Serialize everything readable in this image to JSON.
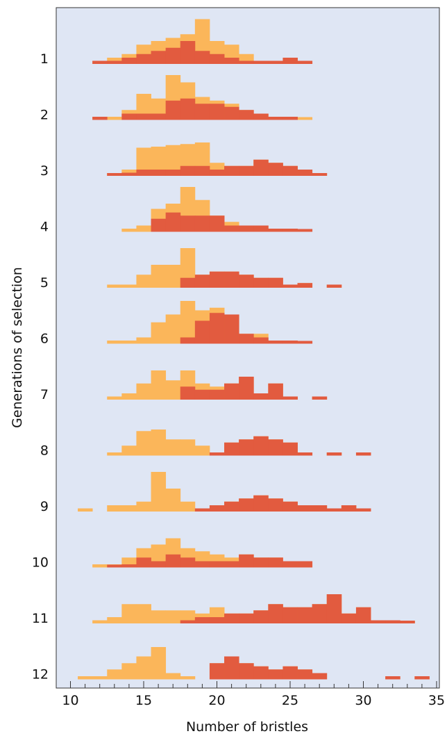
{
  "chart_data": {
    "type": "histogram",
    "xlabel": "Number of bristles",
    "ylabel": "Generations of selection",
    "xlim": [
      10,
      35
    ],
    "x_ticks": [
      "10",
      "15",
      "20",
      "25",
      "30",
      "35"
    ],
    "generation_labels": [
      "1",
      "2",
      "3",
      "4",
      "5",
      "6",
      "7",
      "8",
      "9",
      "10",
      "11",
      "12"
    ],
    "bin_start": 10.5,
    "bin_width": 1,
    "colors": {
      "background": "#dfe6f4",
      "orange": "#fbb65a",
      "red": "#e25b3f",
      "axis": "#333333"
    },
    "generations": [
      {
        "label": "1",
        "orange": [
          0,
          0.06,
          0.12,
          0.19,
          0.37,
          0.44,
          0.5,
          0.57,
          0.86,
          0.44,
          0.37,
          0.19,
          0.06,
          0.06,
          0.12,
          0.06,
          0,
          0,
          0,
          0,
          0,
          0,
          0,
          0,
          0
        ],
        "red": [
          0,
          0.06,
          0.06,
          0.12,
          0.19,
          0.25,
          0.31,
          0.44,
          0.25,
          0.19,
          0.12,
          0.06,
          0.06,
          0.06,
          0.12,
          0.06,
          0,
          0,
          0,
          0,
          0,
          0,
          0,
          0,
          0
        ]
      },
      {
        "label": "2",
        "orange": [
          0,
          0.06,
          0.06,
          0.19,
          0.5,
          0.41,
          0.86,
          0.72,
          0.44,
          0.37,
          0.31,
          0.19,
          0.12,
          0.06,
          0.06,
          0.03,
          0,
          0,
          0,
          0,
          0,
          0,
          0,
          0,
          0
        ],
        "red": [
          0,
          0.06,
          0,
          0.12,
          0.12,
          0.12,
          0.37,
          0.41,
          0.31,
          0.31,
          0.25,
          0.19,
          0.12,
          0.06,
          0.06,
          0,
          0,
          0,
          0,
          0,
          0,
          0,
          0,
          0,
          0
        ]
      },
      {
        "label": "3",
        "orange": [
          0,
          0,
          0.03,
          0.12,
          0.54,
          0.56,
          0.59,
          0.61,
          0.64,
          0.25,
          0.19,
          0.19,
          0.31,
          0.25,
          0.19,
          0.12,
          0.03,
          0,
          0,
          0,
          0,
          0,
          0,
          0,
          0
        ],
        "red": [
          0,
          0,
          0.03,
          0.06,
          0.12,
          0.12,
          0.12,
          0.19,
          0.19,
          0.12,
          0.19,
          0.19,
          0.31,
          0.25,
          0.19,
          0.12,
          0.03,
          0,
          0,
          0,
          0,
          0,
          0,
          0,
          0
        ]
      },
      {
        "label": "4",
        "orange": [
          0,
          0,
          0,
          0.06,
          0.12,
          0.44,
          0.54,
          0.86,
          0.61,
          0.31,
          0.19,
          0.12,
          0.12,
          0.06,
          0.06,
          0.03,
          0,
          0,
          0,
          0,
          0,
          0,
          0,
          0,
          0
        ],
        "red": [
          0,
          0,
          0,
          0,
          0,
          0.25,
          0.37,
          0.31,
          0.31,
          0.31,
          0.12,
          0.12,
          0.12,
          0.06,
          0.06,
          0.03,
          0,
          0,
          0,
          0,
          0,
          0,
          0,
          0,
          0
        ]
      },
      {
        "label": "5",
        "orange": [
          0,
          0,
          0.06,
          0.06,
          0.25,
          0.44,
          0.44,
          0.76,
          0.25,
          0.31,
          0.31,
          0.25,
          0.19,
          0.19,
          0.06,
          0.09,
          0,
          0.06,
          0,
          0,
          0,
          0,
          0,
          0,
          0
        ],
        "red": [
          0,
          0,
          0,
          0,
          0,
          0,
          0,
          0.19,
          0.25,
          0.31,
          0.31,
          0.25,
          0.19,
          0.19,
          0.06,
          0.09,
          0,
          0.06,
          0,
          0,
          0,
          0,
          0,
          0,
          0
        ]
      },
      {
        "label": "6",
        "orange": [
          0,
          0,
          0.06,
          0.06,
          0.12,
          0.41,
          0.56,
          0.82,
          0.64,
          0.69,
          0.56,
          0.19,
          0.19,
          0.06,
          0.06,
          0.03,
          0,
          0,
          0,
          0,
          0,
          0,
          0,
          0,
          0
        ],
        "red": [
          0,
          0,
          0,
          0,
          0,
          0,
          0,
          0.12,
          0.44,
          0.59,
          0.56,
          0.19,
          0.12,
          0.06,
          0.06,
          0.03,
          0,
          0,
          0,
          0,
          0,
          0,
          0,
          0,
          0
        ]
      },
      {
        "label": "7",
        "orange": [
          0,
          0,
          0.06,
          0.12,
          0.31,
          0.56,
          0.37,
          0.56,
          0.31,
          0.25,
          0.31,
          0.44,
          0.12,
          0.31,
          0.06,
          0,
          0.06,
          0,
          0,
          0,
          0,
          0,
          0,
          0,
          0
        ],
        "red": [
          0,
          0,
          0,
          0,
          0,
          0,
          0,
          0.25,
          0.19,
          0.19,
          0.31,
          0.44,
          0.12,
          0.31,
          0.06,
          0,
          0.06,
          0,
          0,
          0,
          0,
          0,
          0,
          0,
          0
        ]
      },
      {
        "label": "8",
        "orange": [
          0,
          0,
          0.06,
          0.19,
          0.47,
          0.5,
          0.31,
          0.31,
          0.19,
          0.06,
          0.25,
          0.31,
          0.37,
          0.31,
          0.25,
          0.06,
          0,
          0.06,
          0,
          0.06,
          0,
          0,
          0,
          0,
          0
        ],
        "red": [
          0,
          0,
          0,
          0,
          0,
          0,
          0,
          0,
          0,
          0.06,
          0.25,
          0.31,
          0.37,
          0.31,
          0.25,
          0.06,
          0,
          0.06,
          0,
          0.06,
          0,
          0,
          0,
          0,
          0
        ]
      },
      {
        "label": "9",
        "orange": [
          0.06,
          0,
          0.12,
          0.12,
          0.19,
          0.76,
          0.44,
          0.19,
          0.06,
          0.12,
          0.19,
          0.25,
          0.31,
          0.25,
          0.19,
          0.12,
          0.12,
          0.06,
          0.12,
          0.06,
          0,
          0,
          0,
          0,
          0
        ],
        "red": [
          0,
          0,
          0,
          0,
          0,
          0,
          0,
          0,
          0.06,
          0.12,
          0.19,
          0.25,
          0.31,
          0.25,
          0.19,
          0.12,
          0.12,
          0.06,
          0.12,
          0.06,
          0,
          0,
          0,
          0,
          0
        ]
      },
      {
        "label": "10",
        "orange": [
          0,
          0.06,
          0.06,
          0.19,
          0.37,
          0.44,
          0.56,
          0.37,
          0.31,
          0.25,
          0.19,
          0.25,
          0.19,
          0.19,
          0.12,
          0.12,
          0,
          0,
          0,
          0,
          0,
          0,
          0,
          0,
          0
        ],
        "red": [
          0,
          0,
          0.03,
          0.06,
          0.19,
          0.12,
          0.25,
          0.19,
          0.12,
          0.12,
          0.12,
          0.25,
          0.19,
          0.19,
          0.12,
          0.12,
          0,
          0,
          0,
          0,
          0,
          0,
          0,
          0,
          0
        ]
      },
      {
        "label": "11",
        "orange": [
          0,
          0.06,
          0.12,
          0.37,
          0.37,
          0.25,
          0.25,
          0.25,
          0.19,
          0.31,
          0.19,
          0.19,
          0.25,
          0.37,
          0.31,
          0.31,
          0.37,
          0.56,
          0.19,
          0.31,
          0.06,
          0.06,
          0.03,
          0,
          0
        ],
        "red": [
          0,
          0,
          0,
          0,
          0,
          0,
          0,
          0.06,
          0.12,
          0.12,
          0.19,
          0.19,
          0.25,
          0.37,
          0.31,
          0.31,
          0.37,
          0.56,
          0.19,
          0.31,
          0.06,
          0.06,
          0.03,
          0,
          0
        ]
      },
      {
        "label": "12",
        "orange": [
          0.06,
          0.06,
          0.19,
          0.31,
          0.44,
          0.62,
          0.12,
          0.06,
          0,
          0.31,
          0.44,
          0.31,
          0.25,
          0.19,
          0.25,
          0.19,
          0.12,
          0,
          0,
          0,
          0,
          0.06,
          0,
          0.06,
          0
        ],
        "red": [
          0,
          0,
          0,
          0,
          0,
          0,
          0,
          0,
          0,
          0.31,
          0.44,
          0.31,
          0.25,
          0.19,
          0.25,
          0.19,
          0.12,
          0,
          0,
          0,
          0,
          0.06,
          0,
          0.06,
          0
        ]
      }
    ]
  }
}
